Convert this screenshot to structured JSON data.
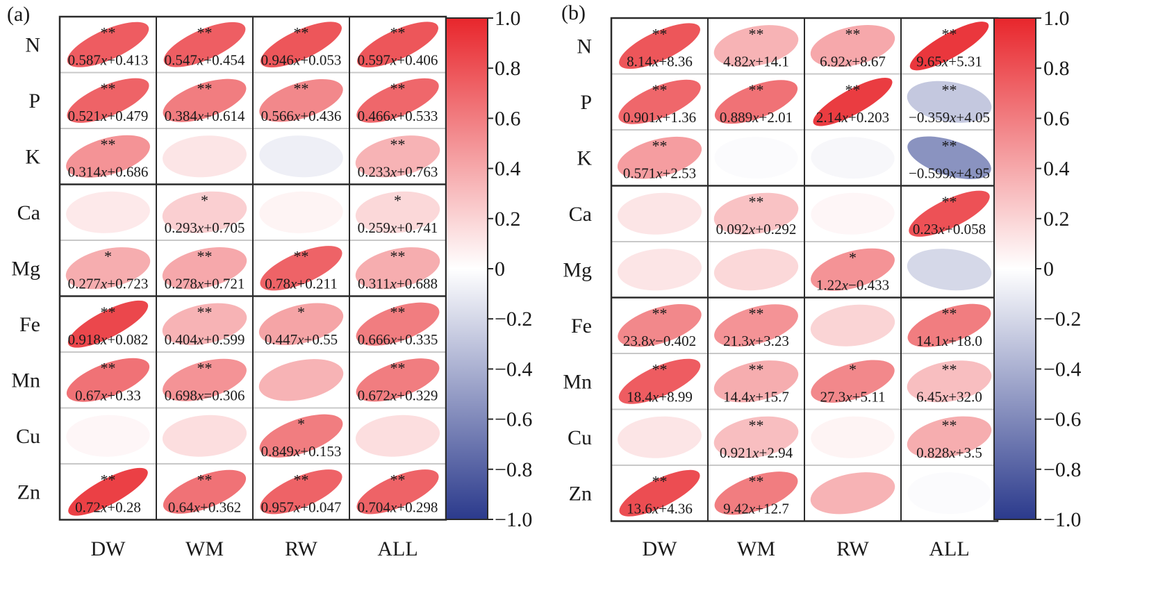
{
  "chart_data": [
    {
      "type": "heatmap",
      "panel_label": "(a)",
      "rows": [
        "N",
        "P",
        "K",
        "Ca",
        "Mg",
        "Fe",
        "Mn",
        "Cu",
        "Zn"
      ],
      "columns": [
        "DW",
        "WM",
        "RW",
        "ALL"
      ],
      "colorbar": {
        "range": [
          -1.0,
          1.0
        ],
        "ticks": [
          "1.0",
          "0.8",
          "0.6",
          "0.4",
          "0.2",
          "0",
          "−0.2",
          "−0.4",
          "−0.6",
          "−0.8",
          "−1.0"
        ],
        "low_color": "#2b3a8c",
        "mid_color": "#ffffff",
        "high_color": "#e8262c"
      },
      "cells": [
        [
          {
            "r": 0.75,
            "sig": "**",
            "eq": "0.587x+0.413"
          },
          {
            "r": 0.74,
            "sig": "**",
            "eq": "0.547x+0.454"
          },
          {
            "r": 0.78,
            "sig": "**",
            "eq": "0.946x+0.053"
          },
          {
            "r": 0.78,
            "sig": "**",
            "eq": "0.597x+0.406"
          }
        ],
        [
          {
            "r": 0.72,
            "sig": "**",
            "eq": "0.521x+0.479"
          },
          {
            "r": 0.6,
            "sig": "**",
            "eq": "0.384x+0.614"
          },
          {
            "r": 0.55,
            "sig": "**",
            "eq": "0.566x+0.436"
          },
          {
            "r": 0.7,
            "sig": "**",
            "eq": "0.466x+0.533"
          }
        ],
        [
          {
            "r": 0.5,
            "sig": "**",
            "eq": "0.314x+0.686"
          },
          {
            "r": 0.12,
            "sig": "",
            "eq": ""
          },
          {
            "r": -0.08,
            "sig": "",
            "eq": ""
          },
          {
            "r": 0.35,
            "sig": "**",
            "eq": "0.233x+0.763"
          }
        ],
        [
          {
            "r": 0.1,
            "sig": "",
            "eq": ""
          },
          {
            "r": 0.22,
            "sig": "*",
            "eq": "0.293x+0.705"
          },
          {
            "r": 0.05,
            "sig": "",
            "eq": ""
          },
          {
            "r": 0.18,
            "sig": "*",
            "eq": "0.259x+0.741"
          }
        ],
        [
          {
            "r": 0.38,
            "sig": "*",
            "eq": "0.277x+0.723"
          },
          {
            "r": 0.4,
            "sig": "**",
            "eq": "0.278x+0.721"
          },
          {
            "r": 0.72,
            "sig": "**",
            "eq": "0.78x+0.211"
          },
          {
            "r": 0.38,
            "sig": "**",
            "eq": "0.311x+0.688"
          }
        ],
        [
          {
            "r": 0.85,
            "sig": "**",
            "eq": "0.918x+0.082"
          },
          {
            "r": 0.35,
            "sig": "**",
            "eq": "0.404x+0.599"
          },
          {
            "r": 0.42,
            "sig": "*",
            "eq": "0.447x+0.55"
          },
          {
            "r": 0.6,
            "sig": "**",
            "eq": "0.666x+0.335"
          }
        ],
        [
          {
            "r": 0.65,
            "sig": "**",
            "eq": "0.67x+0.33"
          },
          {
            "r": 0.5,
            "sig": "**",
            "eq": "0.698x=0.306"
          },
          {
            "r": 0.35,
            "sig": "",
            "eq": ""
          },
          {
            "r": 0.6,
            "sig": "**",
            "eq": "0.672x+0.329"
          }
        ],
        [
          {
            "r": 0.04,
            "sig": "",
            "eq": ""
          },
          {
            "r": 0.15,
            "sig": "",
            "eq": ""
          },
          {
            "r": 0.6,
            "sig": "*",
            "eq": "0.849x+0.153"
          },
          {
            "r": 0.15,
            "sig": "",
            "eq": ""
          }
        ],
        [
          {
            "r": 0.88,
            "sig": "**",
            "eq": "0.72x+0.28"
          },
          {
            "r": 0.65,
            "sig": "**",
            "eq": "0.64x+0.362"
          },
          {
            "r": 0.72,
            "sig": "**",
            "eq": "0.957x+0.047"
          },
          {
            "r": 0.72,
            "sig": "**",
            "eq": "0.704x+0.298"
          }
        ]
      ]
    },
    {
      "type": "heatmap",
      "panel_label": "(b)",
      "rows": [
        "N",
        "P",
        "K",
        "Ca",
        "Mg",
        "Fe",
        "Mn",
        "Cu",
        "Zn"
      ],
      "columns": [
        "DW",
        "WM",
        "RW",
        "ALL"
      ],
      "colorbar": {
        "range": [
          -1.0,
          1.0
        ],
        "ticks": [
          "1.0",
          "0.8",
          "0.6",
          "0.4",
          "0.2",
          "0",
          "−0.2",
          "−0.4",
          "−0.6",
          "−0.8",
          "−1.0"
        ],
        "low_color": "#2b3a8c",
        "mid_color": "#ffffff",
        "high_color": "#e8262c"
      },
      "cells": [
        [
          {
            "r": 0.78,
            "sig": "**",
            "eq": "8.14x+8.36"
          },
          {
            "r": 0.35,
            "sig": "**",
            "eq": "4.82x+14.1"
          },
          {
            "r": 0.4,
            "sig": "**",
            "eq": "6.92x+8.67"
          },
          {
            "r": 0.92,
            "sig": "**",
            "eq": "9.65x+5.31"
          }
        ],
        [
          {
            "r": 0.7,
            "sig": "**",
            "eq": "0.901x+1.36"
          },
          {
            "r": 0.65,
            "sig": "**",
            "eq": "0.889x+2.01"
          },
          {
            "r": 0.9,
            "sig": "**",
            "eq": "2.14x+0.203"
          },
          {
            "r": -0.28,
            "sig": "**",
            "eq": "−0.359x+4.05"
          }
        ],
        [
          {
            "r": 0.45,
            "sig": "**",
            "eq": "0.571x+2.53"
          },
          {
            "r": -0.02,
            "sig": "",
            "eq": ""
          },
          {
            "r": -0.04,
            "sig": "",
            "eq": ""
          },
          {
            "r": -0.55,
            "sig": "**",
            "eq": "−0.599x+4.95"
          }
        ],
        [
          {
            "r": 0.12,
            "sig": "",
            "eq": ""
          },
          {
            "r": 0.28,
            "sig": "**",
            "eq": "0.092x+0.292"
          },
          {
            "r": 0.04,
            "sig": "",
            "eq": ""
          },
          {
            "r": 0.8,
            "sig": "**",
            "eq": "0.23x+0.058"
          }
        ],
        [
          {
            "r": 0.12,
            "sig": "",
            "eq": ""
          },
          {
            "r": 0.18,
            "sig": "",
            "eq": ""
          },
          {
            "r": 0.5,
            "sig": "*",
            "eq": "1.22x−0.433"
          },
          {
            "r": -0.2,
            "sig": "",
            "eq": ""
          }
        ],
        [
          {
            "r": 0.55,
            "sig": "**",
            "eq": "23.8x−0.402"
          },
          {
            "r": 0.5,
            "sig": "**",
            "eq": "21.3x+3.23"
          },
          {
            "r": 0.2,
            "sig": "",
            "eq": ""
          },
          {
            "r": 0.6,
            "sig": "**",
            "eq": "14.1x+18.0"
          }
        ],
        [
          {
            "r": 0.75,
            "sig": "**",
            "eq": "18.4x+8.99"
          },
          {
            "r": 0.38,
            "sig": "**",
            "eq": "14.4x+15.7"
          },
          {
            "r": 0.55,
            "sig": "*",
            "eq": "27.3x+5.11"
          },
          {
            "r": 0.3,
            "sig": "**",
            "eq": "6.45x+32.0"
          }
        ],
        [
          {
            "r": 0.12,
            "sig": "",
            "eq": ""
          },
          {
            "r": 0.3,
            "sig": "**",
            "eq": "0.921x+2.94"
          },
          {
            "r": 0.05,
            "sig": "",
            "eq": ""
          },
          {
            "r": 0.38,
            "sig": "**",
            "eq": "0.828x+3.5"
          }
        ],
        [
          {
            "r": 0.82,
            "sig": "**",
            "eq": "13.6x+4.36"
          },
          {
            "r": 0.6,
            "sig": "**",
            "eq": "9.42x+12.7"
          },
          {
            "r": 0.35,
            "sig": "",
            "eq": ""
          },
          {
            "r": -0.02,
            "sig": "",
            "eq": ""
          }
        ]
      ]
    }
  ]
}
